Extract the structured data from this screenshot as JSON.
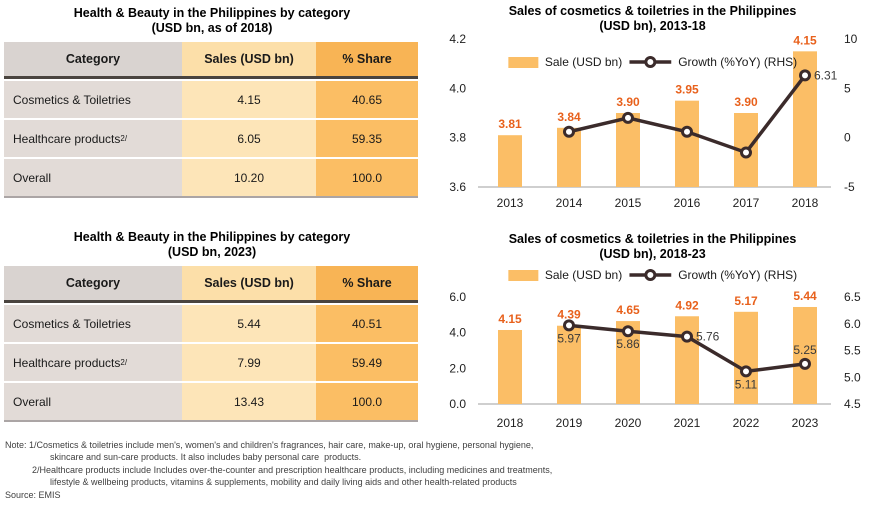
{
  "tables": [
    {
      "title_line1": "Health & Beauty in the Philippines by category",
      "title_line2": "(USD bn, as of 2018)",
      "headers": [
        "Category",
        "Sales (USD bn)",
        "% Share"
      ],
      "rows": [
        {
          "category": "Cosmetics & Toiletries",
          "category_sup": "",
          "sales": "4.15",
          "share": "40.65"
        },
        {
          "category": "Healthcare products",
          "category_sup": "2/",
          "sales": "6.05",
          "share": "59.35"
        },
        {
          "category": "Overall",
          "category_sup": "",
          "sales": "10.20",
          "share": "100.0"
        }
      ]
    },
    {
      "title_line1": "Health & Beauty in the Philippines by category",
      "title_line2": "(USD bn, 2023)",
      "headers": [
        "Category",
        "Sales (USD bn)",
        "% Share"
      ],
      "rows": [
        {
          "category": "Cosmetics & Toiletries",
          "category_sup": "",
          "sales": "5.44",
          "share": "40.51"
        },
        {
          "category": "Healthcare products",
          "category_sup": "2/",
          "sales": "7.99",
          "share": "59.49"
        },
        {
          "category": "Overall",
          "category_sup": "",
          "sales": "13.43",
          "share": "100.0"
        }
      ]
    }
  ],
  "chart_data": [
    {
      "type": "bar+line",
      "title_line1": "Sales of cosmetics & toiletries in the Philippines",
      "title_line2": "(USD bn), 2013-18",
      "categories": [
        "2013",
        "2014",
        "2015",
        "2016",
        "2017",
        "2018"
      ],
      "series": [
        {
          "name": "Sale (USD bn)",
          "type": "bar",
          "axis": "left",
          "values": [
            3.81,
            3.84,
            3.9,
            3.95,
            3.9,
            4.15
          ],
          "labels": [
            "3.81",
            "3.84",
            "3.90",
            "3.95",
            "3.90",
            "4.15"
          ]
        },
        {
          "name": "Growth (%YoY) (RHS)",
          "type": "line",
          "axis": "right",
          "values": [
            null,
            0.6,
            2.0,
            0.6,
            -1.5,
            6.31
          ],
          "labels": [
            null,
            null,
            null,
            null,
            null,
            "6.31"
          ],
          "label_pos": [
            null,
            null,
            null,
            null,
            null,
            "right"
          ]
        }
      ],
      "left_axis": {
        "min": 3.6,
        "max": 4.2,
        "ticks": [
          4.2,
          4.0,
          3.8,
          3.6
        ],
        "tick_labels": [
          "4.2",
          "4.0",
          "3.8",
          "3.6"
        ]
      },
      "right_axis": {
        "min": -5,
        "max": 10,
        "ticks": [
          10,
          5,
          0,
          -5
        ],
        "tick_labels": [
          "10",
          "5",
          "0",
          "-5"
        ]
      },
      "legend": [
        "Sale (USD bn)",
        "Growth (%YoY) (RHS)"
      ],
      "legend_position": "top-center",
      "grid": false
    },
    {
      "type": "bar+line",
      "title_line1": "Sales of cosmetics & toiletries in the Philippines",
      "title_line2": "(USD bn), 2018-23",
      "categories": [
        "2018",
        "2019",
        "2020",
        "2021",
        "2022",
        "2023"
      ],
      "series": [
        {
          "name": "Sale (USD bn)",
          "type": "bar",
          "axis": "left",
          "values": [
            4.15,
            4.39,
            4.65,
            4.92,
            5.17,
            5.44
          ],
          "labels": [
            "4.15",
            "4.39",
            "4.65",
            "4.92",
            "5.17",
            "5.44"
          ]
        },
        {
          "name": "Growth (%YoY) (RHS)",
          "type": "line",
          "axis": "right",
          "values": [
            null,
            5.97,
            5.86,
            5.76,
            5.11,
            5.25
          ],
          "labels": [
            null,
            "5.97",
            "5.86",
            "5.76",
            "5.11",
            "5.25"
          ],
          "label_pos": [
            null,
            "below",
            "below",
            "right",
            "below",
            "above"
          ]
        }
      ],
      "left_axis": {
        "min": 0.0,
        "max": 6.0,
        "ticks": [
          6.0,
          4.0,
          2.0,
          0.0
        ],
        "tick_labels": [
          "6.0",
          "4.0",
          "2.0",
          "0.0"
        ]
      },
      "right_axis": {
        "min": 4.5,
        "max": 6.5,
        "ticks": [
          6.5,
          6.0,
          5.5,
          5.0,
          4.5
        ],
        "tick_labels": [
          "6.5",
          "6.0",
          "5.5",
          "5.0",
          "4.5"
        ]
      },
      "legend": [
        "Sale (USD bn)",
        "Growth (%YoY) (RHS)"
      ],
      "legend_position": "top-center",
      "grid": false
    }
  ],
  "notes": [
    "Note: 1/Cosmetics & toiletries include men's, women's and children's fragrances, hair care, make-up, oral hygiene, personal hygiene,",
    "skincare and sun-care products. It also includes baby personal care  products.",
    "2/Healthcare products include Includes over-the-counter and prescription healthcare products, including medicines and treatments,",
    "lifestyle & wellbeing products, vitamins & supplements, mobility and daily living aids and other health-related products",
    "Source: EMIS"
  ],
  "colors": {
    "bar": "#FBBE66",
    "line": "#3B2B2B",
    "bar_label": "#E8611C",
    "growth_label": "#3A3A3A",
    "cat_header": "#D9D3D0",
    "cat_body": "#E2DBD7",
    "sales_header": "#FCDFA9",
    "sales_body": "#FDE5B8",
    "share_header": "#F8B455",
    "share_body": "#FBBE64"
  }
}
